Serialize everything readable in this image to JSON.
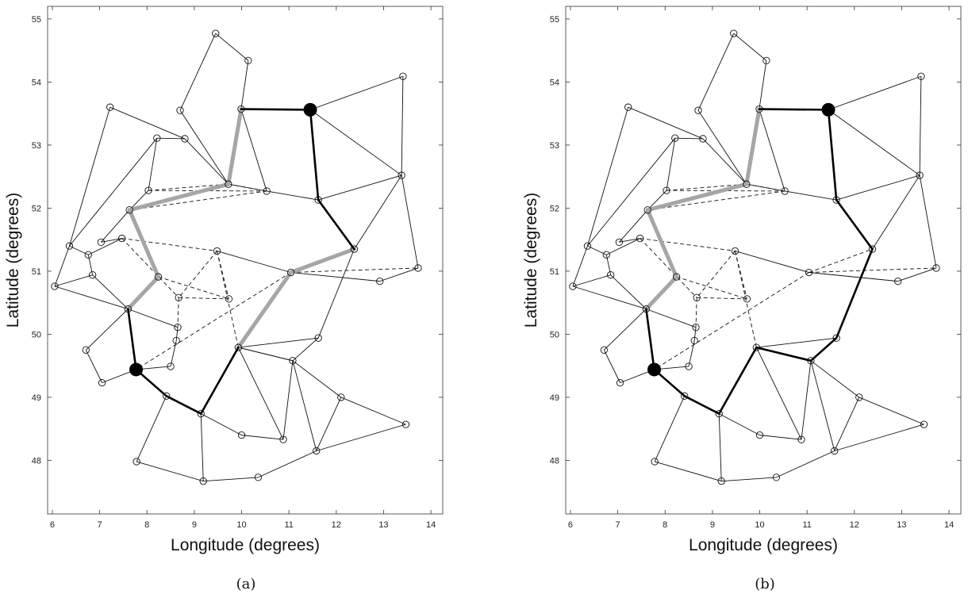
{
  "chart_data": [
    {
      "type": "network-map",
      "caption": "(a)",
      "xlabel": "Longitude (degrees)",
      "ylabel": "Latitude (degrees)",
      "xlim": [
        5.9,
        14.25
      ],
      "ylim": [
        47.15,
        55.2
      ],
      "xticks": [
        6,
        7,
        8,
        9,
        10,
        11,
        12,
        13,
        14
      ],
      "yticks": [
        48,
        49,
        50,
        51,
        52,
        53,
        54,
        55
      ],
      "nodes": [
        [
          6.05,
          50.76
        ],
        [
          6.36,
          51.4
        ],
        [
          6.71,
          49.75
        ],
        [
          6.76,
          51.26
        ],
        [
          6.85,
          50.94
        ],
        [
          7.03,
          51.46
        ],
        [
          7.05,
          49.23
        ],
        [
          7.22,
          53.6
        ],
        [
          7.47,
          51.52
        ],
        [
          7.6,
          50.4
        ],
        [
          7.63,
          51.97
        ],
        [
          7.78,
          47.98
        ],
        [
          7.77,
          49.44
        ],
        [
          8.03,
          52.28
        ],
        [
          8.21,
          53.11
        ],
        [
          8.24,
          50.91
        ],
        [
          8.41,
          49.02
        ],
        [
          8.5,
          49.49
        ],
        [
          8.62,
          49.9
        ],
        [
          8.65,
          50.11
        ],
        [
          8.67,
          50.58
        ],
        [
          8.8,
          53.1
        ],
        [
          8.7,
          53.55
        ],
        [
          9.14,
          48.74
        ],
        [
          9.19,
          47.67
        ],
        [
          9.45,
          54.77
        ],
        [
          9.48,
          51.32
        ],
        [
          9.72,
          52.38
        ],
        [
          9.73,
          50.56
        ],
        [
          9.93,
          49.79
        ],
        [
          9.99,
          53.57
        ],
        [
          10.0,
          48.4
        ],
        [
          10.14,
          54.34
        ],
        [
          10.35,
          47.73
        ],
        [
          10.53,
          52.27
        ],
        [
          10.88,
          48.33
        ],
        [
          11.04,
          50.98
        ],
        [
          11.08,
          49.58
        ],
        [
          11.45,
          53.56
        ],
        [
          11.58,
          48.15
        ],
        [
          11.62,
          52.13
        ],
        [
          11.62,
          49.94
        ],
        [
          12.1,
          49.0
        ],
        [
          12.38,
          51.35
        ],
        [
          12.92,
          50.84
        ],
        [
          13.38,
          52.52
        ],
        [
          13.41,
          54.09
        ],
        [
          13.47,
          48.57
        ],
        [
          13.73,
          51.05
        ]
      ],
      "solid_edges": [
        [
          0,
          1
        ],
        [
          0,
          9
        ],
        [
          0,
          4
        ],
        [
          4,
          3
        ],
        [
          3,
          1
        ],
        [
          1,
          7
        ],
        [
          1,
          14
        ],
        [
          7,
          21
        ],
        [
          4,
          9
        ],
        [
          9,
          2
        ],
        [
          2,
          6
        ],
        [
          6,
          12
        ],
        [
          9,
          19
        ],
        [
          9,
          12
        ],
        [
          12,
          17
        ],
        [
          12,
          16
        ],
        [
          16,
          23
        ],
        [
          16,
          11
        ],
        [
          11,
          24
        ],
        [
          24,
          33
        ],
        [
          33,
          39
        ],
        [
          23,
          31
        ],
        [
          31,
          35
        ],
        [
          35,
          37
        ],
        [
          23,
          24
        ],
        [
          37,
          29
        ],
        [
          37,
          39
        ],
        [
          37,
          42
        ],
        [
          42,
          39
        ],
        [
          42,
          47
        ],
        [
          47,
          39
        ],
        [
          29,
          37
        ],
        [
          29,
          35
        ],
        [
          17,
          18
        ],
        [
          18,
          19
        ],
        [
          14,
          13
        ],
        [
          14,
          21
        ],
        [
          13,
          10
        ],
        [
          10,
          5
        ],
        [
          5,
          8
        ],
        [
          8,
          3
        ],
        [
          21,
          27
        ],
        [
          22,
          27
        ],
        [
          25,
          22
        ],
        [
          25,
          32
        ],
        [
          32,
          30
        ],
        [
          30,
          34
        ],
        [
          34,
          27
        ],
        [
          34,
          40
        ],
        [
          40,
          38
        ],
        [
          38,
          45
        ],
        [
          38,
          46
        ],
        [
          46,
          45
        ],
        [
          45,
          48
        ],
        [
          45,
          40
        ],
        [
          45,
          43
        ],
        [
          43,
          41
        ],
        [
          41,
          29
        ],
        [
          44,
          48
        ],
        [
          44,
          36
        ],
        [
          36,
          26
        ],
        [
          37,
          41
        ],
        [
          30,
          38
        ]
      ],
      "dashed_edges": [
        [
          8,
          20
        ],
        [
          8,
          26
        ],
        [
          20,
          28
        ],
        [
          20,
          19
        ],
        [
          26,
          20
        ],
        [
          26,
          29
        ],
        [
          26,
          28
        ],
        [
          13,
          27
        ],
        [
          13,
          34
        ],
        [
          10,
          34
        ],
        [
          15,
          28
        ],
        [
          36,
          48
        ],
        [
          36,
          43
        ],
        [
          27,
          34
        ],
        [
          36,
          12
        ]
      ],
      "path_black": [
        [
          12,
          9
        ],
        [
          12,
          16
        ],
        [
          16,
          23
        ],
        [
          23,
          29
        ],
        [
          38,
          30
        ],
        [
          38,
          40
        ],
        [
          40,
          43
        ]
      ],
      "path_gray": [
        [
          9,
          15
        ],
        [
          15,
          10
        ],
        [
          10,
          27
        ],
        [
          27,
          30
        ],
        [
          29,
          36
        ],
        [
          36,
          43
        ]
      ],
      "terminals": [
        12,
        38
      ]
    },
    {
      "type": "network-map",
      "caption": "(b)",
      "xlabel": "Longitude (degrees)",
      "ylabel": "Latitude (degrees)",
      "xlim": [
        5.9,
        14.25
      ],
      "ylim": [
        47.15,
        55.2
      ],
      "xticks": [
        6,
        7,
        8,
        9,
        10,
        11,
        12,
        13,
        14
      ],
      "yticks": [
        48,
        49,
        50,
        51,
        52,
        53,
        54,
        55
      ],
      "path_black": [
        [
          12,
          9
        ],
        [
          12,
          16
        ],
        [
          16,
          23
        ],
        [
          23,
          29
        ],
        [
          29,
          37
        ],
        [
          37,
          41
        ],
        [
          41,
          43
        ],
        [
          43,
          40
        ],
        [
          40,
          38
        ],
        [
          38,
          30
        ]
      ],
      "path_gray": [
        [
          9,
          15
        ],
        [
          15,
          10
        ],
        [
          10,
          27
        ],
        [
          27,
          30
        ]
      ],
      "terminals": [
        12,
        38
      ]
    }
  ]
}
